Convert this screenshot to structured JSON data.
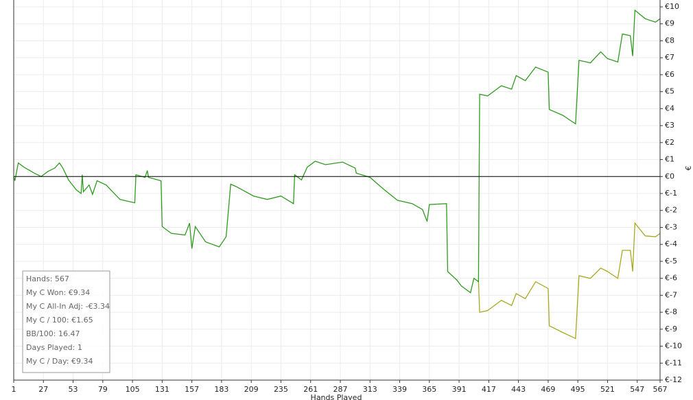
{
  "chart_data": {
    "type": "line",
    "x_label": "Hands Played",
    "y_label": "€",
    "x": [
      1,
      2,
      5,
      10,
      19,
      25,
      31,
      37,
      41,
      44,
      49,
      56,
      60,
      61,
      62,
      67,
      70,
      74,
      82,
      94,
      107,
      108,
      116,
      118,
      119,
      130,
      131,
      139,
      151,
      155,
      157,
      160,
      169,
      181,
      187,
      191,
      196,
      211,
      223,
      235,
      246,
      247,
      253,
      258,
      265,
      274,
      289,
      300,
      301,
      313,
      325,
      337,
      350,
      359,
      363,
      365,
      380,
      381,
      389,
      393,
      401,
      404,
      408,
      409,
      416,
      428,
      437,
      441,
      449,
      458,
      469,
      470,
      482,
      493,
      496,
      506,
      515,
      521,
      530,
      534,
      541,
      543,
      545,
      554,
      563,
      567
    ],
    "series": [
      {
        "color": "#2e9a1e",
        "values": [
          0,
          -0.25,
          0.8,
          0.55,
          0.2,
          0,
          0.3,
          0.5,
          0.8,
          0.5,
          -0.2,
          -0.8,
          -1.0,
          0.1,
          -0.9,
          -0.5,
          -1.05,
          -0.25,
          -0.5,
          -1.35,
          -1.55,
          0.1,
          -0.05,
          0.35,
          -0.05,
          -0.25,
          -2.95,
          -3.35,
          -3.45,
          -2.75,
          -4.25,
          -2.95,
          -3.85,
          -4.15,
          -3.55,
          -0.45,
          -0.6,
          -1.15,
          -1.35,
          -1.15,
          -1.6,
          0.1,
          -0.2,
          0.55,
          0.9,
          0.7,
          0.85,
          0.5,
          0.2,
          -0.05,
          -0.75,
          -1.4,
          -1.6,
          -1.95,
          -2.65,
          -1.65,
          -1.6,
          -5.6,
          -6.1,
          -6.45,
          -6.85,
          -6.0,
          -6.2,
          4.85,
          4.75,
          5.35,
          5.15,
          5.95,
          5.65,
          6.45,
          6.15,
          3.95,
          3.6,
          3.1,
          6.85,
          6.7,
          7.35,
          6.95,
          6.75,
          8.4,
          8.3,
          7.1,
          9.8,
          9.3,
          9.1,
          9.3
        ]
      },
      {
        "color": "#a8a820",
        "values": [
          null,
          null,
          null,
          null,
          null,
          null,
          null,
          null,
          null,
          null,
          null,
          null,
          null,
          null,
          null,
          null,
          null,
          null,
          null,
          null,
          null,
          null,
          null,
          null,
          null,
          null,
          null,
          null,
          null,
          null,
          null,
          null,
          null,
          null,
          null,
          null,
          null,
          null,
          null,
          null,
          null,
          null,
          null,
          null,
          null,
          null,
          null,
          null,
          null,
          null,
          null,
          null,
          null,
          null,
          null,
          null,
          null,
          null,
          null,
          null,
          null,
          null,
          -6.2,
          -8.0,
          -7.9,
          -7.3,
          -7.6,
          -6.9,
          -7.2,
          -6.2,
          -6.6,
          -8.8,
          -9.2,
          -9.55,
          -5.85,
          -6.0,
          -5.4,
          -5.6,
          -6.0,
          -4.35,
          -4.35,
          -5.6,
          -2.75,
          -3.5,
          -3.55,
          -3.35
        ]
      }
    ],
    "xlim": [
      1,
      567
    ],
    "xticks": [
      1,
      27,
      53,
      79,
      105,
      131,
      157,
      183,
      209,
      235,
      261,
      287,
      313,
      339,
      365,
      391,
      417,
      443,
      469,
      495,
      521,
      547,
      567
    ],
    "ylim": [
      -12,
      10
    ],
    "yticks": [
      {
        "value": 10,
        "label": "€10"
      },
      {
        "value": 9,
        "label": "€9"
      },
      {
        "value": 8,
        "label": "€8"
      },
      {
        "value": 7,
        "label": "€7"
      },
      {
        "value": 6,
        "label": "€6"
      },
      {
        "value": 5,
        "label": "€5"
      },
      {
        "value": 4,
        "label": "€4"
      },
      {
        "value": 3,
        "label": "€3"
      },
      {
        "value": 2,
        "label": "€2"
      },
      {
        "value": 1,
        "label": "€1"
      },
      {
        "value": 0,
        "label": "€0"
      },
      {
        "value": -1,
        "label": "€-1"
      },
      {
        "value": -2,
        "label": "€-2"
      },
      {
        "value": -3,
        "label": "€-3"
      },
      {
        "value": -4,
        "label": "€-4"
      },
      {
        "value": -5,
        "label": "€-5"
      },
      {
        "value": -6,
        "label": "€-6"
      },
      {
        "value": -7,
        "label": "€-7"
      },
      {
        "value": -8,
        "label": "€-8"
      },
      {
        "value": -9,
        "label": "€-9"
      },
      {
        "value": -10,
        "label": "€-10"
      },
      {
        "value": -11,
        "label": "€-11"
      },
      {
        "value": -12,
        "label": "€-12"
      }
    ],
    "grid": true,
    "info_box": [
      "Hands: 567",
      "My C Won: €9.34",
      "My C All-In Adj: -€3.34",
      "My C / 100: €1.65",
      "BB/100: 16.47",
      "Days Played: 1",
      "My C / Day: €9.34"
    ]
  }
}
